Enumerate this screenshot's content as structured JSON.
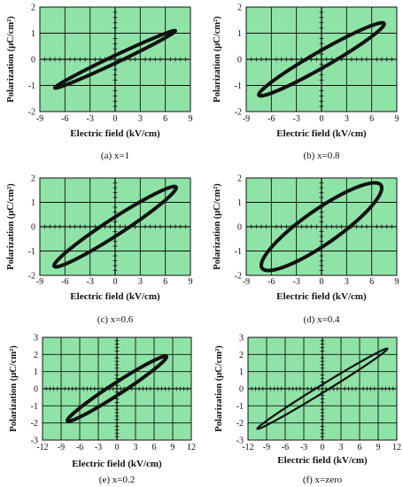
{
  "colors": {
    "plot_background": "#8fe3a6",
    "line": "#111111"
  },
  "chart_data": [
    {
      "type": "line",
      "caption": "(a) x=1",
      "xlabel": "Electric field (kV/cm)",
      "ylabel": "Polarization (μC/cm²)",
      "xlim": [
        -9,
        9
      ],
      "ylim": [
        -2,
        2
      ],
      "xticks": [
        "-9",
        "-6",
        "-3",
        "0",
        "3",
        "6",
        "9"
      ],
      "yticks": [
        "-2",
        "-1",
        "0",
        "1",
        "2"
      ],
      "grid": true,
      "loop": {
        "e_max": 7.2,
        "p_max": 1.1,
        "p_remanent": 0.15,
        "e_coercive": 1.0
      }
    },
    {
      "type": "line",
      "caption": "(b) x=0.8",
      "xlabel": "Electric field (kV/cm)",
      "ylabel": "Polarization (μC/cm²)",
      "xlim": [
        -9,
        9
      ],
      "ylim": [
        -2,
        2
      ],
      "xticks": [
        "-9",
        "-6",
        "-3",
        "0",
        "3",
        "6",
        "9"
      ],
      "yticks": [
        "-2",
        "-1",
        "0",
        "1",
        "2"
      ],
      "grid": true,
      "loop": {
        "e_max": 7.5,
        "p_max": 1.4,
        "p_remanent": 0.35,
        "e_coercive": 2.0
      }
    },
    {
      "type": "line",
      "caption": "(c) x=0.6",
      "xlabel": "Electric field (kV/cm)",
      "ylabel": "Polarization (μC/cm²)",
      "xlim": [
        -9,
        9
      ],
      "ylim": [
        -2,
        2
      ],
      "xticks": [
        "-9",
        "-6",
        "-3",
        "0",
        "3",
        "6",
        "9"
      ],
      "yticks": [
        "-2",
        "-1",
        "0",
        "1",
        "2"
      ],
      "grid": true,
      "loop": {
        "e_max": 7.3,
        "p_max": 1.65,
        "p_remanent": 0.4,
        "e_coercive": 1.8
      }
    },
    {
      "type": "line",
      "caption": "(d) x=0.4",
      "xlabel": "Electric field (kV/cm)",
      "ylabel": "Polarization (μC/cm²)",
      "xlim": [
        -9,
        9
      ],
      "ylim": [
        -2,
        2
      ],
      "xticks": [
        "-9",
        "-6",
        "-3",
        "0",
        "3",
        "6",
        "9"
      ],
      "yticks": [
        "-2",
        "-1",
        "0",
        "1",
        "2"
      ],
      "grid": true,
      "loop": {
        "e_max": 7.2,
        "p_max": 1.8,
        "p_remanent": 0.85,
        "e_coercive": 4.0
      }
    },
    {
      "type": "line",
      "caption": "(e) x=0.2",
      "xlabel": "Electric field (kV/cm)",
      "ylabel": "Polarization (μC/cm²)",
      "xlim": [
        -12,
        12
      ],
      "ylim": [
        -3,
        3
      ],
      "xticks": [
        "-12",
        "-9",
        "-6",
        "-3",
        "0",
        "3",
        "6",
        "9",
        "12"
      ],
      "yticks": [
        "-3",
        "-2",
        "-1",
        "0",
        "1",
        "2",
        "3"
      ],
      "grid": true,
      "loop": {
        "e_max": 8.0,
        "p_max": 1.9,
        "p_remanent": 0.4,
        "e_coercive": 2.0
      }
    },
    {
      "type": "line",
      "caption": "(f) x=zero",
      "xlabel": "Electric field (kV/cm)",
      "ylabel": "Polarization (μC/cm²)",
      "xlim": [
        -12,
        12
      ],
      "ylim": [
        -3,
        3
      ],
      "xticks": [
        "-12",
        "-9",
        "-6",
        "-3",
        "0",
        "3",
        "6",
        "9",
        "12"
      ],
      "yticks": [
        "-3",
        "-2",
        "-1",
        "0",
        "1",
        "2",
        "3"
      ],
      "grid": true,
      "loop": {
        "e_max": 10.5,
        "p_max": 2.35,
        "p_remanent": 0.25,
        "e_coercive": 1.0
      }
    }
  ]
}
